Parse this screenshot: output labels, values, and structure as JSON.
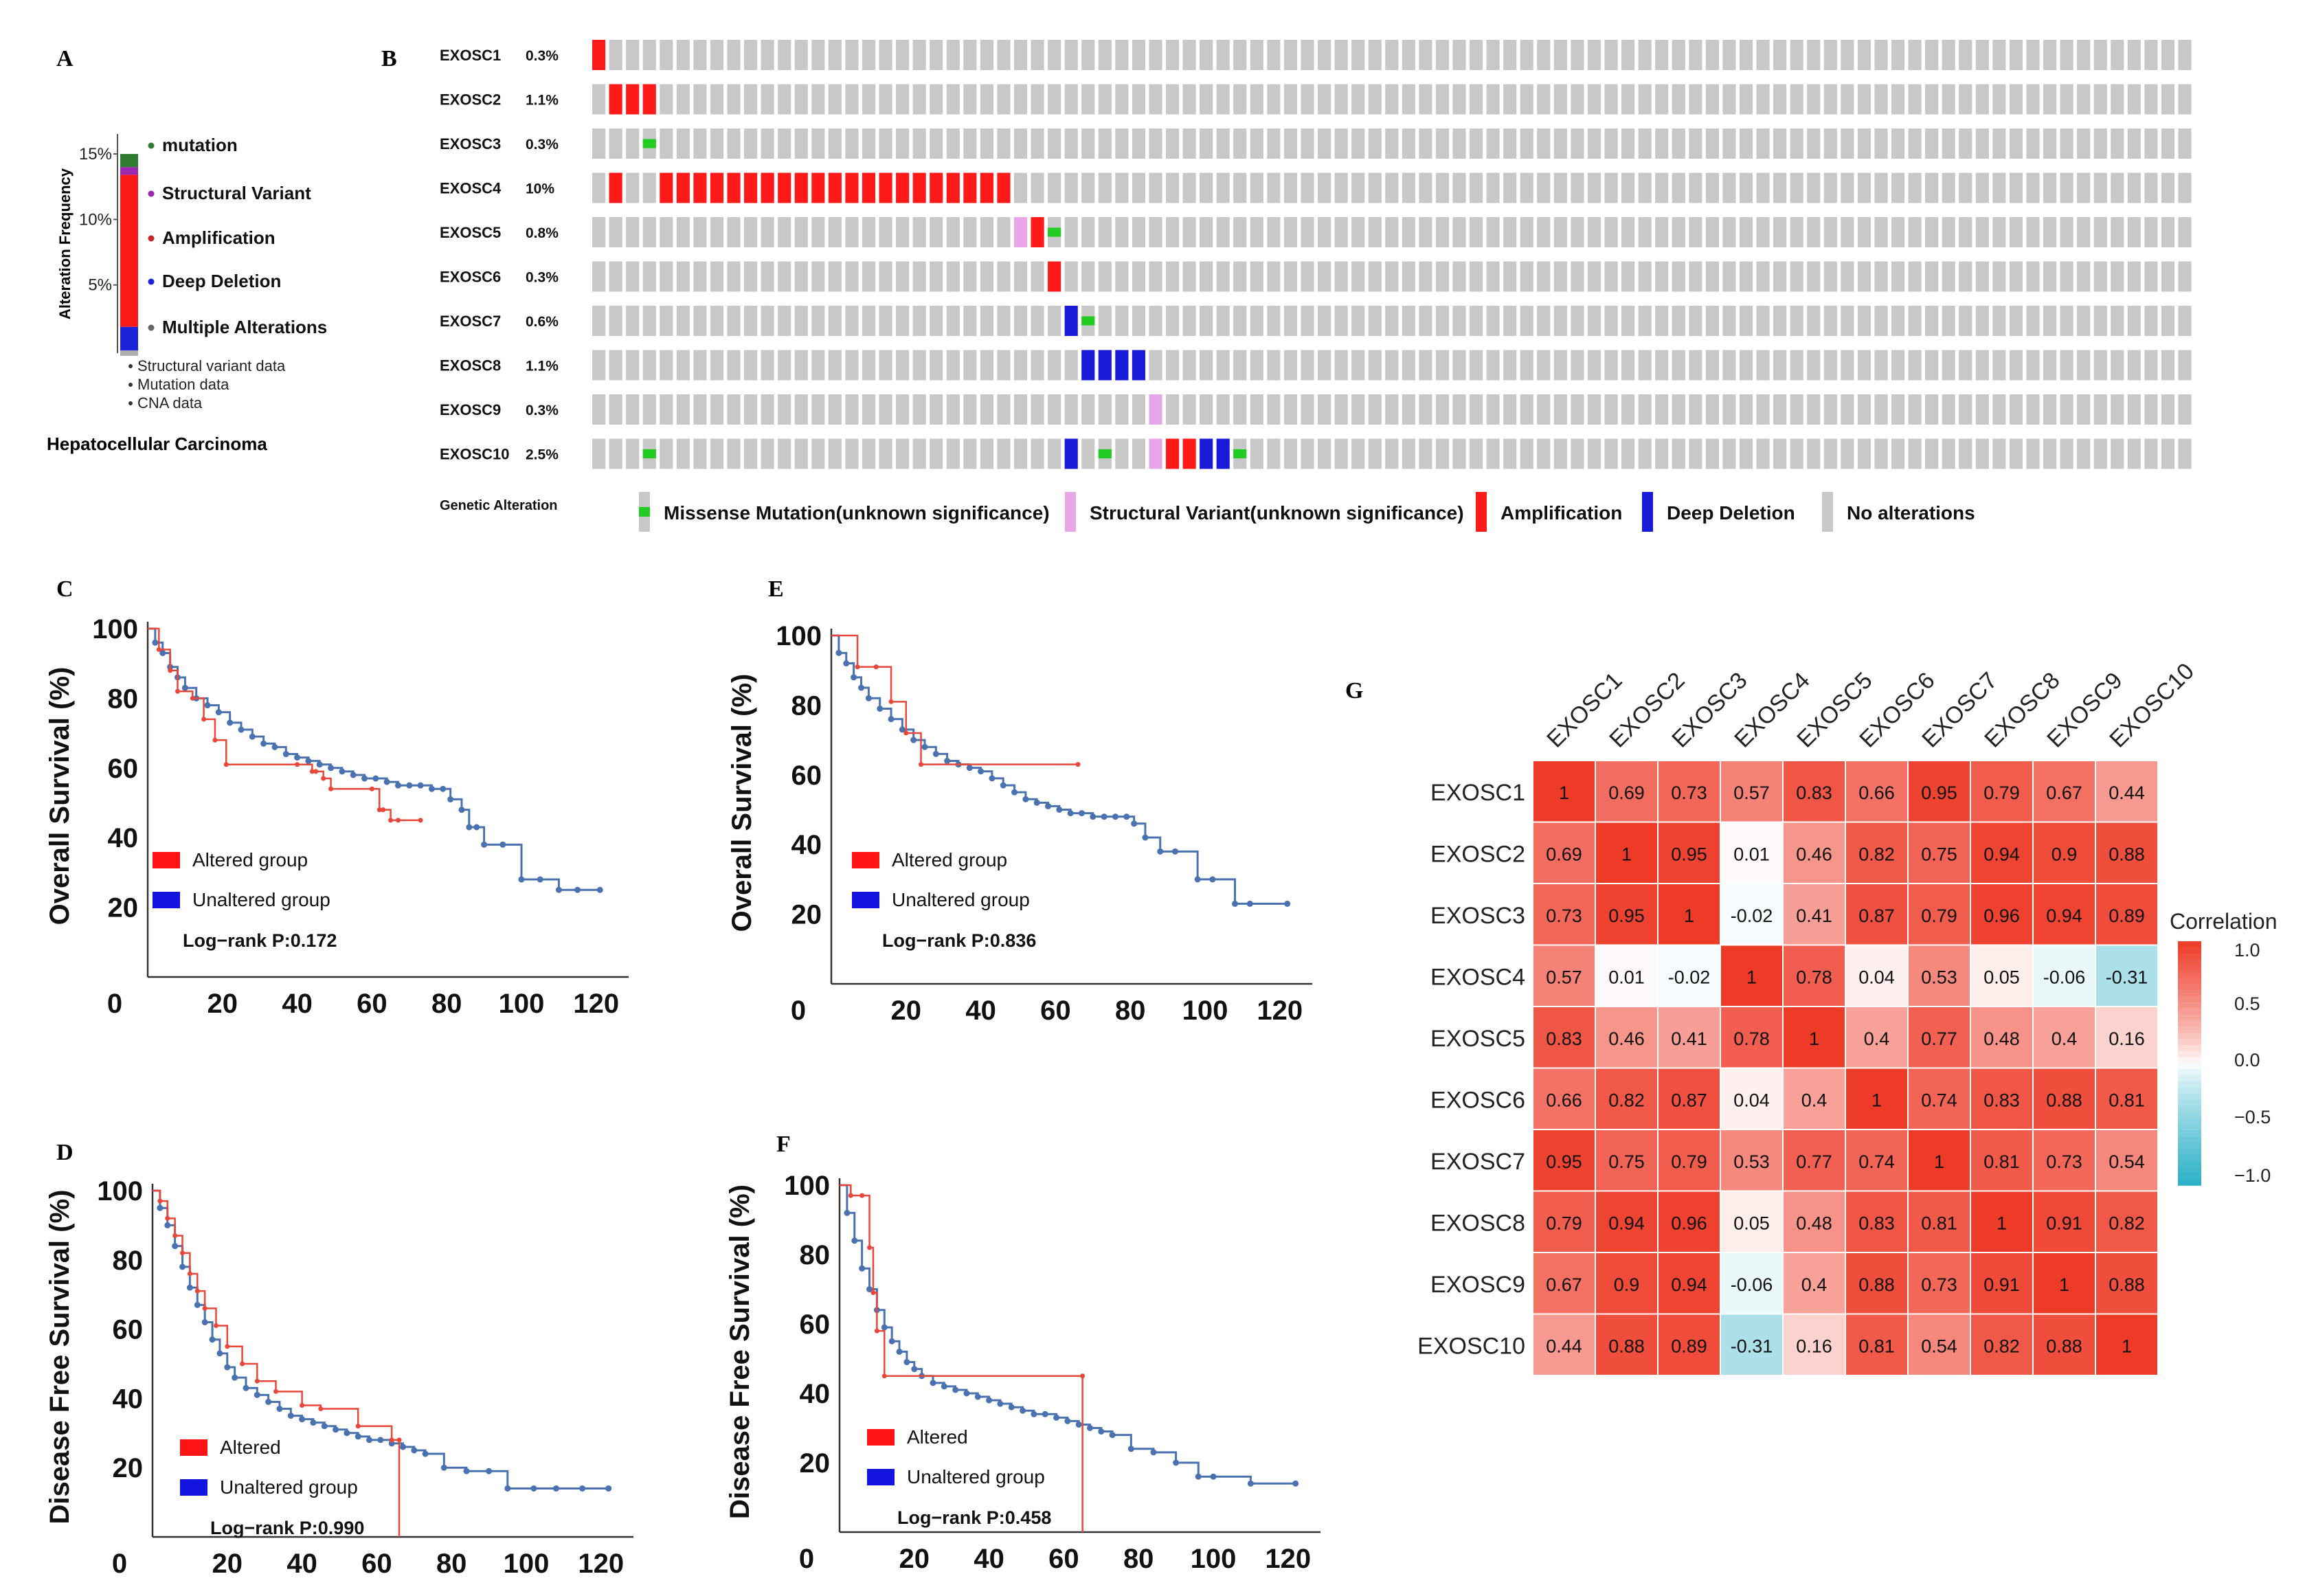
{
  "chart_data": [
    {
      "panel": "A",
      "type": "bar",
      "title": "Hepatocellular Carcinoma",
      "ylabel": "Alteration Frequency",
      "yticks": [
        "15%",
        "10%",
        "5%"
      ],
      "ylim": [
        0,
        16
      ],
      "segments": [
        {
          "name": "mutation",
          "value": 1.0,
          "color": "#2e7d32"
        },
        {
          "name": "Structural Variant",
          "value": 0.6,
          "color": "#9c27b0"
        },
        {
          "name": "Amplification",
          "value": 11.6,
          "color": "#ff1a1a"
        },
        {
          "name": "Deep Deletion",
          "value": 1.8,
          "color": "#1a23d9"
        }
      ],
      "legend": [
        {
          "label": "mutation",
          "color": "#2e7d32"
        },
        {
          "label": "Structural Variant",
          "color": "#9c27b0"
        },
        {
          "label": "Amplification",
          "color": "#c62828"
        },
        {
          "label": "Deep Deletion",
          "color": "#1a23d9"
        },
        {
          "label": "Multiple Alterations",
          "color": "#666666"
        }
      ],
      "notes": [
        "Structural variant data",
        "Mutation data",
        "CNA data"
      ]
    },
    {
      "panel": "B",
      "type": "oncoprint",
      "n_samples": 95,
      "title": "Genetic Alteration",
      "genes": [
        {
          "name": "EXOSC1",
          "pct": "0.3%",
          "alt": [
            {
              "s": 0,
              "t": "amp"
            }
          ]
        },
        {
          "name": "EXOSC2",
          "pct": "1.1%",
          "alt": [
            {
              "s": 1,
              "t": "amp"
            },
            {
              "s": 2,
              "t": "amp"
            },
            {
              "s": 3,
              "t": "amp"
            }
          ]
        },
        {
          "name": "EXOSC3",
          "pct": "0.3%",
          "alt": [
            {
              "s": 3,
              "t": "mis"
            }
          ]
        },
        {
          "name": "EXOSC4",
          "pct": "10%",
          "alt_range": [
            [
              1,
              1
            ],
            [
              4,
              24
            ]
          ]
        },
        {
          "name": "EXOSC5",
          "pct": "0.8%",
          "alt": [
            {
              "s": 25,
              "t": "sv"
            },
            {
              "s": 26,
              "t": "amp"
            },
            {
              "s": 27,
              "t": "mis"
            }
          ]
        },
        {
          "name": "EXOSC6",
          "pct": "0.3%",
          "alt": [
            {
              "s": 27,
              "t": "amp"
            }
          ]
        },
        {
          "name": "EXOSC7",
          "pct": "0.6%",
          "alt": [
            {
              "s": 28,
              "t": "del"
            },
            {
              "s": 29,
              "t": "mis"
            }
          ]
        },
        {
          "name": "EXOSC8",
          "pct": "1.1%",
          "alt": [
            {
              "s": 29,
              "t": "del"
            },
            {
              "s": 30,
              "t": "del"
            },
            {
              "s": 31,
              "t": "del"
            },
            {
              "s": 32,
              "t": "del"
            }
          ]
        },
        {
          "name": "EXOSC9",
          "pct": "0.3%",
          "alt": [
            {
              "s": 33,
              "t": "sv"
            }
          ]
        },
        {
          "name": "EXOSC10",
          "pct": "2.5%",
          "alt": [
            {
              "s": 3,
              "t": "mis"
            },
            {
              "s": 28,
              "t": "del"
            },
            {
              "s": 30,
              "t": "mis"
            },
            {
              "s": 33,
              "t": "sv"
            },
            {
              "s": 34,
              "t": "amp"
            },
            {
              "s": 35,
              "t": "amp"
            },
            {
              "s": 36,
              "t": "del"
            },
            {
              "s": 37,
              "t": "del"
            },
            {
              "s": 38,
              "t": "mis"
            }
          ]
        }
      ],
      "legend": [
        {
          "label": "Missense Mutation(unknown significance)",
          "key": "mis"
        },
        {
          "label": "Structural Variant(unknown significance)",
          "key": "sv"
        },
        {
          "label": "Amplification",
          "key": "amp"
        },
        {
          "label": "Deep Deletion",
          "key": "del"
        },
        {
          "label": "No alterations",
          "key": "none"
        }
      ],
      "colors": {
        "none": "#c8c8c8",
        "amp": "#ff1a1a",
        "del": "#1a1ad9",
        "mis": "#22cc22",
        "sv": "#e7a6e7"
      }
    },
    {
      "panel": "C",
      "type": "line",
      "ylabel": "Overall Survival (%)",
      "xticks": [
        0,
        20,
        40,
        60,
        80,
        100,
        120
      ],
      "yticks": [
        20,
        40,
        60,
        80,
        100
      ],
      "xlim": [
        0,
        125
      ],
      "ylim": [
        0,
        100
      ],
      "legend": [
        "Altered group",
        "Unaltered group"
      ],
      "pvalue": "Log−rank P:0.172",
      "series": [
        {
          "name": "Altered group",
          "color": "#e8473a",
          "x": [
            0,
            3,
            6,
            8,
            12,
            15,
            18,
            21,
            40,
            44,
            45,
            47,
            49,
            60,
            62,
            63,
            65,
            67,
            73
          ],
          "y": [
            100,
            94,
            88,
            82,
            80,
            74,
            68,
            61,
            61,
            59,
            59,
            57,
            54,
            54,
            48,
            48,
            45,
            45,
            45
          ]
        },
        {
          "name": "Unaltered group",
          "color": "#4a72b0",
          "x": [
            0,
            2,
            4,
            6,
            8,
            10,
            13,
            16,
            19,
            22,
            25,
            28,
            31,
            34,
            37,
            40,
            43,
            46,
            49,
            52,
            55,
            58,
            61,
            64,
            67,
            70,
            73,
            76,
            79,
            81,
            84,
            86,
            88,
            90,
            95,
            100,
            105,
            110,
            115,
            121
          ],
          "y": [
            100,
            96,
            93,
            89,
            86,
            83,
            80,
            78,
            76,
            73,
            71,
            69,
            67,
            66,
            64,
            63,
            62,
            61,
            60,
            59,
            58,
            57,
            57,
            56,
            55,
            55,
            55,
            54,
            54,
            51,
            48,
            43,
            43,
            38,
            38,
            28,
            28,
            25,
            25,
            25
          ]
        }
      ],
      "x_axis_zero_label": "0"
    },
    {
      "panel": "E",
      "type": "line",
      "ylabel": "Overall Survival (%)",
      "xticks": [
        0,
        20,
        40,
        60,
        80,
        100,
        120
      ],
      "yticks": [
        20,
        40,
        60,
        80,
        100
      ],
      "xlim": [
        0,
        125
      ],
      "ylim": [
        0,
        100
      ],
      "legend": [
        "Altered group",
        "Unaltered group"
      ],
      "pvalue": "Log−rank P:0.836",
      "series": [
        {
          "name": "Altered group",
          "color": "#e8473a",
          "x": [
            0,
            7,
            12,
            16,
            20,
            24,
            66
          ],
          "y": [
            100,
            91,
            91,
            81,
            72,
            63,
            63
          ]
        },
        {
          "name": "Unaltered group",
          "color": "#4a72b0",
          "x": [
            0,
            2,
            4,
            6,
            8,
            10,
            13,
            16,
            19,
            22,
            25,
            28,
            31,
            34,
            37,
            40,
            43,
            46,
            49,
            52,
            55,
            58,
            61,
            64,
            67,
            70,
            73,
            76,
            79,
            81,
            84,
            88,
            92,
            98,
            102,
            108,
            112,
            122
          ],
          "y": [
            100,
            95,
            92,
            88,
            85,
            82,
            79,
            76,
            73,
            70,
            68,
            66,
            64,
            63,
            62,
            61,
            59,
            57,
            55,
            53,
            52,
            51,
            50,
            49,
            49,
            48,
            48,
            48,
            48,
            46,
            42,
            38,
            38,
            30,
            30,
            23,
            23,
            23
          ]
        }
      ],
      "x_axis_zero_label": "0"
    },
    {
      "panel": "D",
      "type": "line",
      "ylabel": "Disease Free Survival (%)",
      "xticks": [
        0,
        20,
        40,
        60,
        80,
        100,
        120
      ],
      "yticks": [
        20,
        40,
        60,
        80,
        100
      ],
      "xlim": [
        0,
        125
      ],
      "ylim": [
        0,
        100
      ],
      "legend": [
        "Altered",
        "Unaltered group"
      ],
      "pvalue": "Log−rank P:0.990",
      "series": [
        {
          "name": "Altered",
          "color": "#e8473a",
          "x": [
            0,
            2,
            4,
            6,
            8,
            10,
            12,
            14,
            17,
            20,
            24,
            28,
            33,
            40,
            45,
            55,
            64,
            66,
            66
          ],
          "y": [
            100,
            97,
            92,
            87,
            82,
            76,
            71,
            66,
            61,
            55,
            50,
            45,
            42,
            38,
            37,
            32,
            28,
            28,
            0
          ]
        },
        {
          "name": "Unaltered group",
          "color": "#4a72b0",
          "x": [
            0,
            2,
            4,
            6,
            8,
            10,
            12,
            14,
            16,
            18,
            20,
            22,
            25,
            28,
            31,
            34,
            37,
            40,
            43,
            46,
            49,
            52,
            55,
            58,
            61,
            64,
            67,
            70,
            73,
            78,
            84,
            90,
            95,
            102,
            108,
            115,
            122
          ],
          "y": [
            100,
            95,
            90,
            84,
            78,
            72,
            67,
            62,
            57,
            53,
            49,
            46,
            43,
            41,
            39,
            37,
            35,
            34,
            33,
            32,
            31,
            30,
            29,
            28,
            28,
            27,
            26,
            25,
            24,
            20,
            19,
            19,
            14,
            14,
            14,
            14,
            14
          ]
        }
      ],
      "x_axis_zero_label": "0"
    },
    {
      "panel": "F",
      "type": "line",
      "ylabel": "Disease Free Survival (%)",
      "xticks": [
        0,
        20,
        40,
        60,
        80,
        100,
        120
      ],
      "yticks": [
        20,
        40,
        60,
        80,
        100
      ],
      "xlim": [
        0,
        125
      ],
      "ylim": [
        0,
        100
      ],
      "legend": [
        "Altered",
        "Unaltered group"
      ],
      "pvalue": "Log−rank P:0.458",
      "series": [
        {
          "name": "Altered",
          "color": "#e8473a",
          "x": [
            0,
            3,
            6,
            8,
            9,
            10,
            12,
            65,
            65
          ],
          "y": [
            100,
            97,
            97,
            82,
            69,
            58,
            45,
            45,
            0
          ]
        },
        {
          "name": "Unaltered group",
          "color": "#4a72b0",
          "x": [
            0,
            2,
            4,
            6,
            8,
            10,
            12,
            14,
            16,
            18,
            20,
            22,
            25,
            28,
            31,
            34,
            37,
            40,
            43,
            46,
            49,
            52,
            55,
            58,
            61,
            64,
            67,
            70,
            73,
            78,
            84,
            90,
            96,
            100,
            110,
            122
          ],
          "y": [
            100,
            92,
            84,
            76,
            70,
            64,
            59,
            55,
            52,
            49,
            47,
            45,
            43,
            42,
            41,
            40,
            39,
            38,
            37,
            36,
            35,
            34,
            34,
            33,
            32,
            31,
            30,
            29,
            28,
            24,
            23,
            20,
            16,
            16,
            14,
            14
          ]
        }
      ],
      "x_axis_zero_label": "0"
    },
    {
      "panel": "G",
      "type": "heatmap",
      "labels": [
        "EXOSC1",
        "EXOSC2",
        "EXOSC3",
        "EXOSC4",
        "EXOSC5",
        "EXOSC6",
        "EXOSC7",
        "EXOSC8",
        "EXOSC9",
        "EXOSC10"
      ],
      "values": [
        [
          1,
          0.69,
          0.73,
          0.57,
          0.83,
          0.66,
          0.95,
          0.79,
          0.67,
          0.44
        ],
        [
          0.69,
          1,
          0.95,
          0.01,
          0.46,
          0.82,
          0.75,
          0.94,
          0.9,
          0.88
        ],
        [
          0.73,
          0.95,
          1,
          -0.02,
          0.41,
          0.87,
          0.79,
          0.96,
          0.94,
          0.89
        ],
        [
          0.57,
          0.01,
          -0.02,
          1,
          0.78,
          0.04,
          0.53,
          0.05,
          -0.06,
          -0.31
        ],
        [
          0.83,
          0.46,
          0.41,
          0.78,
          1,
          0.4,
          0.77,
          0.48,
          0.4,
          0.16
        ],
        [
          0.66,
          0.82,
          0.87,
          0.04,
          0.4,
          1,
          0.74,
          0.83,
          0.88,
          0.81
        ],
        [
          0.95,
          0.75,
          0.79,
          0.53,
          0.77,
          0.74,
          1,
          0.81,
          0.73,
          0.54
        ],
        [
          0.79,
          0.94,
          0.96,
          0.05,
          0.48,
          0.83,
          0.81,
          1,
          0.91,
          0.82
        ],
        [
          0.67,
          0.9,
          0.94,
          -0.06,
          0.4,
          0.88,
          0.73,
          0.91,
          1,
          0.88
        ],
        [
          0.44,
          0.88,
          0.89,
          -0.31,
          0.16,
          0.81,
          0.54,
          0.82,
          0.88,
          1
        ]
      ],
      "cell_text": [
        [
          "1",
          "0.69",
          "0.73",
          "0.57",
          "0.83",
          "0.66",
          "0.95",
          "0.79",
          "0.67",
          "0.44"
        ],
        [
          "0.69",
          "1",
          "0.95",
          "0.01",
          "0.46",
          "0.82",
          "0.75",
          "0.94",
          "0.9",
          "0.88"
        ],
        [
          "0.73",
          "0.95",
          "1",
          "-0.02",
          "0.41",
          "0.87",
          "0.79",
          "0.96",
          "0.94",
          "0.89"
        ],
        [
          "0.57",
          "0.01",
          "-0.02",
          "1",
          "0.78",
          "0.04",
          "0.53",
          "0.05",
          "-0.06",
          "-0.31"
        ],
        [
          "0.83",
          "0.46",
          "0.41",
          "0.78",
          "1",
          "0.4",
          "0.77",
          "0.48",
          "0.4",
          "0.16"
        ],
        [
          "0.66",
          "0.82",
          "0.87",
          "0.04",
          "0.4",
          "1",
          "0.74",
          "0.83",
          "0.88",
          "0.81"
        ],
        [
          "0.95",
          "0.75",
          "0.79",
          "0.53",
          "0.77",
          "0.74",
          "1",
          "0.81",
          "0.73",
          "0.54"
        ],
        [
          "0.79",
          "0.94",
          "0.96",
          "0.05",
          "0.48",
          "0.83",
          "0.81",
          "1",
          "0.91",
          "0.82"
        ],
        [
          "0.67",
          "0.9",
          "0.94",
          "-0.06",
          "0.4",
          "0.88",
          "0.73",
          "0.91",
          "1",
          "0.88"
        ],
        [
          "0.44",
          "0.88",
          "0.89",
          "-0.31",
          "0.16",
          "0.81",
          "0.54",
          "0.82",
          "0.88",
          "1"
        ]
      ],
      "legend_title": "Correlation",
      "legend_ticks": [
        "1.0",
        "0.5",
        "0.0",
        "−0.5",
        "−1.0"
      ],
      "colors": {
        "high": "#ee3b28",
        "mid": "#ffffff",
        "low": "#2ab0c6"
      }
    }
  ],
  "panel_labels": [
    "A",
    "B",
    "C",
    "D",
    "E",
    "F",
    "G"
  ]
}
